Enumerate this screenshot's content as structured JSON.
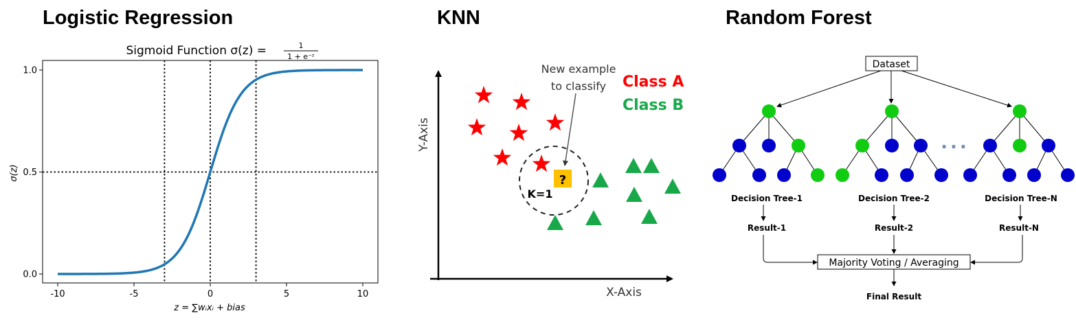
{
  "headings": {
    "logistic": "Logistic Regression",
    "knn": "KNN",
    "forest": "Random Forest"
  },
  "sigmoid": {
    "title": "Sigmoid Function σ(z) =",
    "frac_num": "1",
    "frac_den": "1 + e⁻ᶻ",
    "ylabel": "σ(z)",
    "xlabel": "z = ∑wᵢxᵢ + bias",
    "xticks": [
      "-10",
      "-5",
      "0",
      "5",
      "10"
    ],
    "yticks": [
      "0.0",
      "0.5",
      "1.0"
    ],
    "line_color": "#1f77b4"
  },
  "chart_data": {
    "type": "line",
    "x_range": [
      -10,
      10
    ],
    "ylim": [
      0,
      1
    ],
    "xticks": [
      -10,
      -5,
      0,
      5,
      10
    ],
    "yticks": [
      0,
      0.5,
      1
    ],
    "reference_lines": {
      "vertical": [
        -3,
        0,
        3
      ],
      "horizontal": [
        0.5
      ]
    },
    "series": [
      {
        "function": "1/(1+exp(-z))"
      }
    ]
  },
  "knn": {
    "annotation_line1": "New example",
    "annotation_line2": "to classify",
    "class_a": "Class A",
    "class_b": "Class B",
    "k_label": "K=1",
    "query_symbol": "?",
    "x_axis": "X-Axis",
    "y_axis": "Y-Axis",
    "class_a_color": "#ff0000",
    "class_b_color": "#18a84a",
    "query_color": "#ffc000"
  },
  "forest": {
    "dataset": "Dataset",
    "ellipsis": "...",
    "trees": [
      {
        "label": "Decision Tree-1",
        "result": "Result-1"
      },
      {
        "label": "Decision Tree-2",
        "result": "Result-2"
      },
      {
        "label": "Decision Tree-N",
        "result": "Result-N"
      }
    ],
    "voting": "Majority Voting / Averaging",
    "final": "Final Result",
    "node_green": "#11cc11",
    "node_blue": "#0000cc"
  }
}
